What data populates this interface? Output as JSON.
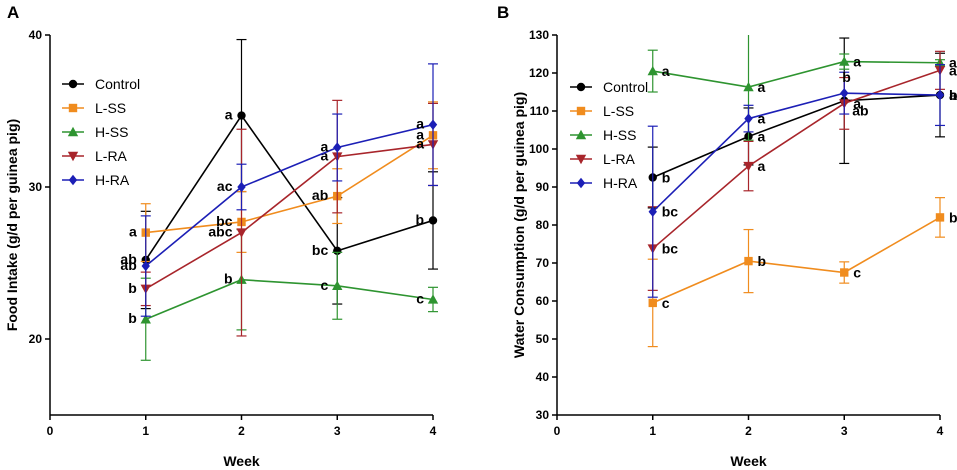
{
  "chart_data": [
    {
      "panel": "A",
      "type": "line",
      "xlabel": "Week",
      "ylabel": "Food Intake (g/d per guinea pig)",
      "xlim": [
        0,
        4
      ],
      "ylim": [
        15,
        40
      ],
      "xticks": [
        0,
        1,
        2,
        3,
        4
      ],
      "yticks": [
        20,
        30,
        40
      ],
      "x": [
        1,
        2,
        3,
        4
      ],
      "legend": "top-left",
      "series": [
        {
          "name": "Control",
          "color": "#000000",
          "marker": "circle",
          "values": [
            25.2,
            34.7,
            25.8,
            27.8
          ],
          "errors": [
            3.2,
            5.0,
            3.5,
            3.2
          ],
          "labels": [
            "ab",
            "a",
            "bc",
            "b"
          ]
        },
        {
          "name": "L-SS",
          "color": "#f08c1e",
          "marker": "square",
          "values": [
            27.0,
            27.7,
            29.4,
            33.4
          ],
          "errors": [
            1.9,
            2.0,
            1.8,
            2.2
          ],
          "labels": [
            "a",
            "bc",
            "ab",
            "a"
          ]
        },
        {
          "name": "H-SS",
          "color": "#2e9430",
          "marker": "triangle",
          "values": [
            21.3,
            23.9,
            23.5,
            22.6
          ],
          "errors": [
            2.7,
            3.3,
            2.2,
            0.8
          ],
          "labels": [
            "b",
            "b",
            "c",
            "c"
          ]
        },
        {
          "name": "L-RA",
          "color": "#a8252b",
          "marker": "triangle-down",
          "values": [
            23.3,
            27.0,
            32.0,
            32.8
          ],
          "errors": [
            1.1,
            6.8,
            3.7,
            2.7
          ],
          "labels": [
            "b",
            "abc",
            "a",
            "a"
          ]
        },
        {
          "name": "H-RA",
          "color": "#1c1fb6",
          "marker": "diamond",
          "values": [
            24.8,
            30.0,
            32.6,
            34.1
          ],
          "errors": [
            3.3,
            1.5,
            2.2,
            4.0
          ],
          "labels": [
            "ab",
            "ac",
            "a",
            "a"
          ]
        }
      ]
    },
    {
      "panel": "B",
      "type": "line",
      "xlabel": "Week",
      "ylabel": "Water Consumption (g/d per guinea pig)",
      "xlim": [
        0,
        4
      ],
      "ylim": [
        30,
        130
      ],
      "xticks": [
        0,
        1,
        2,
        3,
        4
      ],
      "yticks": [
        30,
        40,
        50,
        60,
        70,
        80,
        90,
        100,
        110,
        120,
        130
      ],
      "x": [
        1,
        2,
        3,
        4
      ],
      "legend": "top-left",
      "series": [
        {
          "name": "Control",
          "color": "#000000",
          "marker": "circle",
          "values": [
            92.5,
            103.3,
            112.7,
            114.2
          ],
          "errors": [
            8.0,
            7.5,
            16.5,
            11.0
          ],
          "labels": [
            "b",
            "a",
            "ab",
            "a"
          ]
        },
        {
          "name": "L-SS",
          "color": "#f08c1e",
          "marker": "square",
          "values": [
            59.5,
            70.5,
            67.5,
            82.0
          ],
          "errors": [
            11.5,
            8.3,
            2.8,
            5.2
          ],
          "labels": [
            "c",
            "b",
            "c",
            "b"
          ]
        },
        {
          "name": "H-SS",
          "color": "#2e9430",
          "marker": "triangle",
          "values": [
            120.5,
            116.3,
            123.0,
            122.7
          ],
          "errors": [
            5.5,
            14.0,
            2.0,
            0.8
          ],
          "labels": [
            "a",
            "a",
            "a",
            "a"
          ]
        },
        {
          "name": "L-RA",
          "color": "#a8252b",
          "marker": "triangle-down",
          "values": [
            73.8,
            95.5,
            112.0,
            120.7
          ],
          "errors": [
            11.0,
            6.5,
            6.8,
            5.0
          ],
          "labels": [
            "bc",
            "a",
            "a",
            "a"
          ]
        },
        {
          "name": "H-RA",
          "color": "#1c1fb6",
          "marker": "diamond",
          "values": [
            83.5,
            108.0,
            114.7,
            114.2
          ],
          "errors": [
            22.5,
            3.5,
            5.5,
            8.0
          ],
          "labels": [
            "bc",
            "a",
            "b",
            "b"
          ]
        }
      ]
    }
  ]
}
